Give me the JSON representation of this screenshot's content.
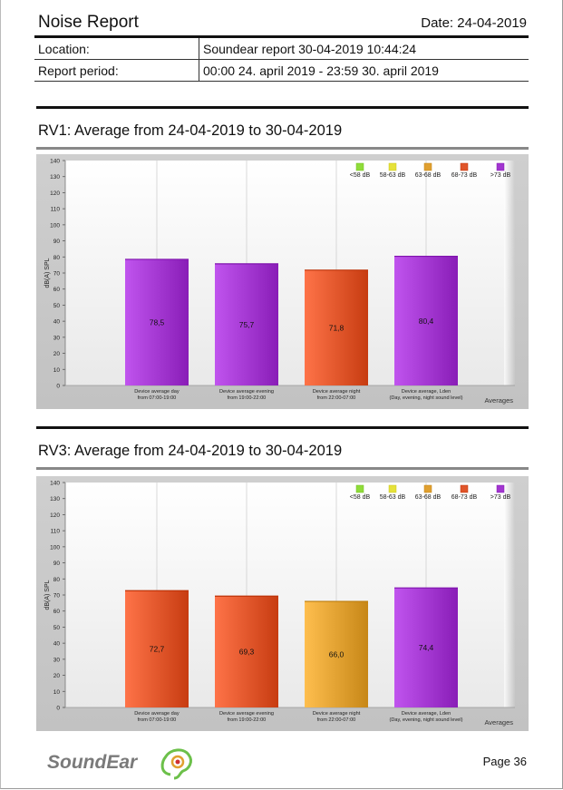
{
  "header": {
    "title": "Noise Report",
    "date": "Date: 24-04-2019"
  },
  "info": {
    "location_label": "Location:",
    "location_value": "Soundear report 30-04-2019 10:44:24",
    "period_label": "Report period:",
    "period_value": "00:00 24. april 2019 - 23:59 30. april 2019"
  },
  "sections": [
    {
      "title": "RV1: Average from 24-04-2019 to 30-04-2019"
    },
    {
      "title": "RV3: Average from 24-04-2019 to 30-04-2019"
    }
  ],
  "legend": [
    {
      "label": "<58 dB",
      "color": "#8fdc3a"
    },
    {
      "label": "58-63 dB",
      "color": "#e6e23a"
    },
    {
      "label": "63-68 dB",
      "color": "#e0a030"
    },
    {
      "label": "68-73 dB",
      "color": "#e0552a"
    },
    {
      "label": ">73 dB",
      "color": "#a236d0"
    }
  ],
  "chart_data": [
    {
      "type": "bar",
      "ylabel": "dB(A) SPL",
      "xlabel": "Averages",
      "ylim": [
        0,
        140
      ],
      "yticks": [
        "0",
        "10",
        "20",
        "30",
        "40",
        "50",
        "60",
        "70",
        "80",
        "90",
        "100",
        "110",
        "120",
        "130",
        "140"
      ],
      "categories": [
        [
          "Device average day",
          "from 07:00-19:00"
        ],
        [
          "Device average evening",
          "from 19:00-22:00"
        ],
        [
          "Device average night",
          "from 22:00-07:00"
        ],
        [
          "Device average, Lden",
          "(Day, evening, night sound level)"
        ]
      ],
      "values": [
        78.5,
        75.7,
        71.8,
        80.4
      ],
      "value_labels": [
        "78,5",
        "75,7",
        "71,8",
        "80,4"
      ],
      "bar_colors": [
        "#a236d0",
        "#a236d0",
        "#e0552a",
        "#a236d0"
      ]
    },
    {
      "type": "bar",
      "ylabel": "dB(A) SPL",
      "xlabel": "Averages",
      "ylim": [
        0,
        140
      ],
      "yticks": [
        "0",
        "10",
        "20",
        "30",
        "40",
        "50",
        "60",
        "70",
        "80",
        "90",
        "100",
        "110",
        "120",
        "130",
        "140"
      ],
      "categories": [
        [
          "Device average day",
          "from 07:00-19:00"
        ],
        [
          "Device average evening",
          "from 19:00-22:00"
        ],
        [
          "Device average night",
          "from 22:00-07:00"
        ],
        [
          "Device average, Lden",
          "(Day, evening, night sound level)"
        ]
      ],
      "values": [
        72.7,
        69.3,
        66.0,
        74.4
      ],
      "value_labels": [
        "72,7",
        "69,3",
        "66,0",
        "74,4"
      ],
      "bar_colors": [
        "#e0552a",
        "#e0552a",
        "#e0a030",
        "#a236d0"
      ]
    }
  ],
  "footer": {
    "logo_text": "SoundEar",
    "page": "Page 36"
  }
}
